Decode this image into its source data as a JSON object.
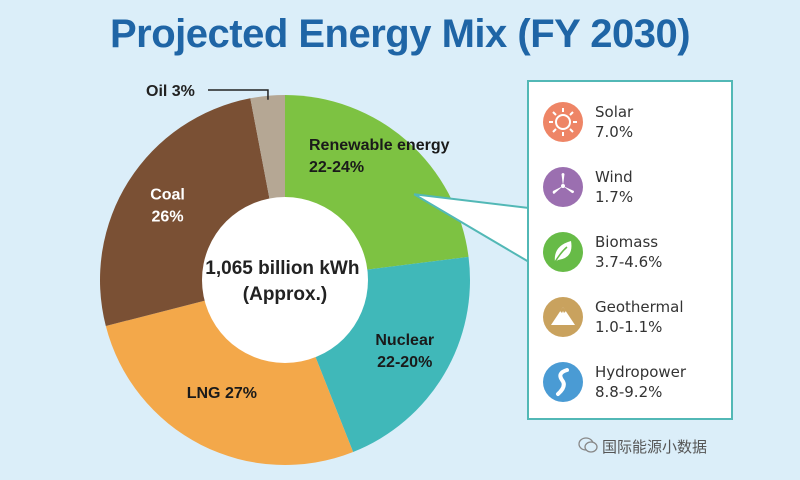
{
  "chart_data": {
    "type": "pie",
    "title": "Projected Energy Mix (FY 2030)",
    "center_label": [
      "1,065 billion kWh",
      "(Approx.)"
    ],
    "slices": [
      {
        "name": "Renewable energy",
        "value_label": "22-24%",
        "value": 23,
        "color": "#7dc242"
      },
      {
        "name": "Nuclear",
        "value_label": "22-20%",
        "value": 21,
        "color": "#40b8b9"
      },
      {
        "name": "LNG",
        "value_label": "27%",
        "value": 27,
        "color": "#f3a84a"
      },
      {
        "name": "Coal",
        "value_label": "26%",
        "value": 26,
        "color": "#7a5034"
      },
      {
        "name": "Oil",
        "value_label": "3%",
        "value": 3,
        "color": "#b5a794"
      }
    ],
    "renewable_breakdown": [
      {
        "name": "Solar",
        "value": "7.0%",
        "icon": "sun-icon",
        "color": "#ee8566"
      },
      {
        "name": "Wind",
        "value": "1.7%",
        "icon": "wind-turbine-icon",
        "color": "#9b6fb0"
      },
      {
        "name": "Biomass",
        "value": "3.7-4.6%",
        "icon": "leaf-icon",
        "color": "#67bb47"
      },
      {
        "name": "Geothermal",
        "value": "1.0-1.1%",
        "icon": "mountain-icon",
        "color": "#c9a25e"
      },
      {
        "name": "Hydropower",
        "value": "8.8-9.2%",
        "icon": "river-icon",
        "color": "#4a9bd4"
      }
    ]
  },
  "watermark": "国际能源小数据",
  "colors": {
    "title": "#1f65a6",
    "legend_border": "#52b8b6",
    "background": "#dbeef9"
  }
}
